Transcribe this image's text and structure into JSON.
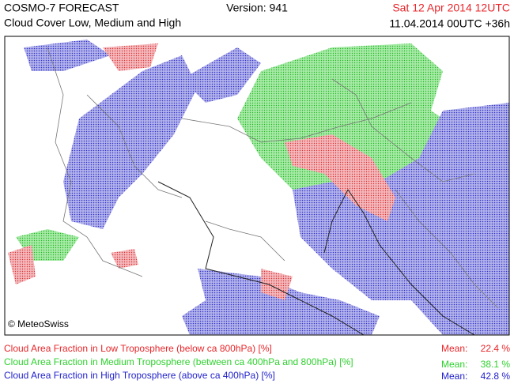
{
  "header": {
    "model": "COSMO-7 FORECAST",
    "subtitle": "Cloud Cover Low, Medium and High",
    "version": "Version: 941",
    "valid_time": "Sat 12 Apr 2014 12UTC",
    "valid_time_color": "#e8262a",
    "run": "11.04.2014 00UTC +36h"
  },
  "map": {
    "copyright": "© MeteoSwiss"
  },
  "legend": [
    {
      "label": "Cloud Area Fraction in Low Troposphere (below ca 800hPa) [%]",
      "mean_label": "Mean:",
      "mean": "22.4 %",
      "color": "#e8262a"
    },
    {
      "label": "Cloud Area Fraction in Medium Troposphere (between ca 400hPa and 800hPa) [%]",
      "mean_label": "Mean:",
      "mean": "38.1 %",
      "color": "#2ed12e"
    },
    {
      "label": "Cloud Area Fraction in High Troposphere (above ca 400hPa) [%]",
      "mean_label": "Mean:",
      "mean": "42.8 %",
      "color": "#2222cc"
    }
  ]
}
